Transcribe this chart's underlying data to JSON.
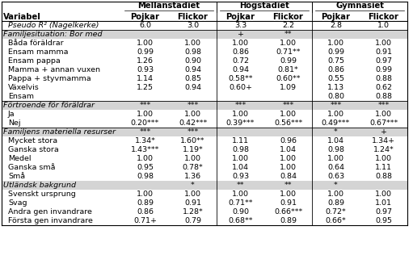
{
  "col_group_headers": [
    "Mellanstadiet",
    "Högstadiet",
    "Gymnasiet"
  ],
  "col_sub_headers": [
    "Pojkar",
    "Flickor",
    "Pojkar",
    "Flickor",
    "Pojkar",
    "Flickor"
  ],
  "rows": [
    {
      "label": "Pseudo R² (Nagelkerke)",
      "vals": [
        "6.0",
        "3.0",
        "3.3",
        "2.2",
        "2.8",
        "1.0"
      ],
      "italic": true,
      "gray": false,
      "section": false,
      "separator_below": true
    },
    {
      "label": "Familjesituation: Bor med",
      "vals": [
        "",
        "",
        "+",
        "**",
        "",
        ""
      ],
      "italic": true,
      "gray": true,
      "section": true,
      "separator_below": false
    },
    {
      "label": "Båda föräldrar",
      "vals": [
        "1.00",
        "1.00",
        "1.00",
        "1.00",
        "1.00",
        "1.00"
      ],
      "italic": false,
      "gray": false,
      "section": false,
      "separator_below": false
    },
    {
      "label": "Ensam mamma",
      "vals": [
        "0.99",
        "0.98",
        "0.86",
        "0.71**",
        "0.99",
        "0.91"
      ],
      "italic": false,
      "gray": false,
      "section": false,
      "separator_below": false
    },
    {
      "label": "Ensam pappa",
      "vals": [
        "1.26",
        "0.90",
        "0.72",
        "0.99",
        "0.75",
        "0.97"
      ],
      "italic": false,
      "gray": false,
      "section": false,
      "separator_below": false
    },
    {
      "label": "Mamma + annan vuxen",
      "vals": [
        "0.93",
        "0.94",
        "0.94",
        "0.81*",
        "0.86",
        "0.99"
      ],
      "italic": false,
      "gray": false,
      "section": false,
      "separator_below": false
    },
    {
      "label": "Pappa + styvmamma",
      "vals": [
        "1.14",
        "0.85",
        "0.58**",
        "0.60**",
        "0.55",
        "0.88"
      ],
      "italic": false,
      "gray": false,
      "section": false,
      "separator_below": false
    },
    {
      "label": "Växelvis",
      "vals": [
        "1.25",
        "0.94",
        "0.60+",
        "1.09",
        "1.13",
        "0.62"
      ],
      "italic": false,
      "gray": false,
      "section": false,
      "separator_below": false
    },
    {
      "label": "Ensam",
      "vals": [
        "",
        "",
        "",
        "",
        "0.80",
        "0.88"
      ],
      "italic": false,
      "gray": false,
      "section": false,
      "separator_below": true
    },
    {
      "label": "Förtroende för föräldrar",
      "vals": [
        "***",
        "***",
        "***",
        "***",
        "***",
        "***"
      ],
      "italic": true,
      "gray": true,
      "section": true,
      "separator_below": false
    },
    {
      "label": "Ja",
      "vals": [
        "1.00",
        "1.00",
        "1.00",
        "1.00",
        "1.00",
        "1.00"
      ],
      "italic": false,
      "gray": false,
      "section": false,
      "separator_below": false
    },
    {
      "label": "Nej",
      "vals": [
        "0.20***",
        "0.42***",
        "0.39***",
        "0.56***",
        "0.49***",
        "0.67***"
      ],
      "italic": false,
      "gray": false,
      "section": false,
      "separator_below": true
    },
    {
      "label": "Familjens materiella resurser",
      "vals": [
        "***",
        "***",
        "",
        "",
        "*",
        "+"
      ],
      "italic": true,
      "gray": true,
      "section": true,
      "separator_below": false
    },
    {
      "label": "Mycket stora",
      "vals": [
        "1.34*",
        "1.60**",
        "1.11",
        "0.96",
        "1.04",
        "1.34+"
      ],
      "italic": false,
      "gray": false,
      "section": false,
      "separator_below": false
    },
    {
      "label": "Ganska stora",
      "vals": [
        "1.43***",
        "1.19*",
        "0.98",
        "1.04",
        "0.98",
        "1.24*"
      ],
      "italic": false,
      "gray": false,
      "section": false,
      "separator_below": false
    },
    {
      "label": "Medel",
      "vals": [
        "1.00",
        "1.00",
        "1.00",
        "1.00",
        "1.00",
        "1.00"
      ],
      "italic": false,
      "gray": false,
      "section": false,
      "separator_below": false
    },
    {
      "label": "Ganska små",
      "vals": [
        "0.95",
        "0.78*",
        "1.04",
        "1.00",
        "0.64",
        "1.11"
      ],
      "italic": false,
      "gray": false,
      "section": false,
      "separator_below": false
    },
    {
      "label": "Små",
      "vals": [
        "0.98",
        "1.36",
        "0.93",
        "0.84",
        "0.63",
        "0.88"
      ],
      "italic": false,
      "gray": false,
      "section": false,
      "separator_below": false
    },
    {
      "label": "Utländsk bakgrund",
      "vals": [
        "",
        "*",
        "**",
        "**",
        "*",
        ""
      ],
      "italic": true,
      "gray": true,
      "section": true,
      "separator_below": false
    },
    {
      "label": "Svenskt ursprung",
      "vals": [
        "1.00",
        "1.00",
        "1.00",
        "1.00",
        "1.00",
        "1.00"
      ],
      "italic": false,
      "gray": false,
      "section": false,
      "separator_below": false
    },
    {
      "label": "Svag",
      "vals": [
        "0.89",
        "0.91",
        "0.71**",
        "0.91",
        "0.89",
        "1.01"
      ],
      "italic": false,
      "gray": false,
      "section": false,
      "separator_below": false
    },
    {
      "label": "Andra gen invandrare",
      "vals": [
        "0.86",
        "1.28*",
        "0.90",
        "0.66***",
        "0.72*",
        "0.97"
      ],
      "italic": false,
      "gray": false,
      "section": false,
      "separator_below": false
    },
    {
      "label": "Första gen invandrare",
      "vals": [
        "0.71+",
        "0.79",
        "0.68**",
        "0.89",
        "0.66*",
        "0.95"
      ],
      "italic": false,
      "gray": false,
      "section": false,
      "separator_below": false
    }
  ],
  "gray_color": "#d4d4d4",
  "font_size": 6.8,
  "header_font_size": 7.2,
  "indent": 8
}
